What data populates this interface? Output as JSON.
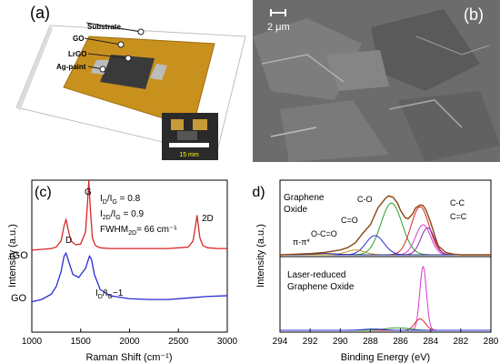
{
  "panel_a": {
    "label": "(a)",
    "callouts": [
      "Substrate",
      "GO",
      "LrGO",
      "Ag-paint"
    ],
    "inset_scale": "15 mm"
  },
  "panel_b": {
    "label": "(b)",
    "scale_text": "2 μm"
  },
  "colors": {
    "red": "#d62728",
    "blue": "#2b2bd6",
    "green": "#2ca02c",
    "purple": "#8e24aa",
    "magenta": "#d63ad6",
    "gold": "#c8961e",
    "brown": "#8b4513",
    "navy": "#1f2a8a"
  },
  "chart_data": [
    {
      "type": "line",
      "panel_label": "(c)",
      "xlabel": "Raman Shift (cm⁻¹)",
      "ylabel": "Intensity (a.u.)",
      "xlim": [
        1000,
        3000
      ],
      "xticks": [
        1000,
        1500,
        2000,
        2500,
        3000
      ],
      "series": [
        {
          "name": "rGO",
          "color": "#d62728",
          "x": [
            1000,
            1100,
            1200,
            1250,
            1300,
            1330,
            1350,
            1370,
            1400,
            1450,
            1500,
            1550,
            1570,
            1583,
            1600,
            1620,
            1650,
            1700,
            1800,
            2000,
            2200,
            2400,
            2500,
            2600,
            2650,
            2680,
            2690,
            2700,
            2720,
            2750,
            2800,
            2900,
            3000
          ],
          "y": [
            0.54,
            0.545,
            0.55,
            0.56,
            0.6,
            0.7,
            0.74,
            0.68,
            0.6,
            0.575,
            0.58,
            0.66,
            0.85,
            1.0,
            0.8,
            0.62,
            0.57,
            0.555,
            0.55,
            0.55,
            0.55,
            0.55,
            0.555,
            0.56,
            0.6,
            0.72,
            0.77,
            0.72,
            0.62,
            0.57,
            0.555,
            0.55,
            0.55
          ]
        },
        {
          "name": "GO",
          "color": "#2b2bd6",
          "x": [
            1000,
            1100,
            1200,
            1250,
            1300,
            1330,
            1350,
            1380,
            1420,
            1480,
            1550,
            1590,
            1610,
            1640,
            1700,
            1800,
            2000,
            2200,
            2400,
            2600,
            2800,
            3000
          ],
          "y": [
            0.2,
            0.215,
            0.25,
            0.3,
            0.4,
            0.5,
            0.52,
            0.46,
            0.38,
            0.36,
            0.42,
            0.5,
            0.48,
            0.38,
            0.28,
            0.24,
            0.22,
            0.215,
            0.215,
            0.225,
            0.235,
            0.24
          ]
        }
      ],
      "annotations": [
        "D",
        "G",
        "2D",
        "rGO",
        "GO"
      ],
      "ratio_lines": [
        {
          "pre": "I",
          "s1": "D",
          "mid": "/I",
          "s2": "G",
          "post": " = 0.8"
        },
        {
          "pre": "I",
          "s1": "2D",
          "mid": "/I",
          "s2": "G",
          "post": " = 0.9"
        },
        {
          "pre": "FWHM",
          "s1": "2D",
          "mid": "",
          "s2": "",
          "post": "= 66 cm⁻¹"
        }
      ],
      "go_ratio": {
        "pre": "I",
        "s1": "D",
        "mid": "/I",
        "s2": "G",
        "post": "~1"
      }
    },
    {
      "type": "line",
      "panel_label": "(d)",
      "xlabel": "Binding Energy (eV)",
      "ylabel": "Intensity (a.u.)",
      "xlim": [
        294,
        280
      ],
      "xticks": [
        294,
        292,
        290,
        288,
        286,
        284,
        282,
        280
      ],
      "top_title_lines": [
        "Graphene",
        "Oxide"
      ],
      "bottom_title_lines": [
        "Laser-reduced",
        "Graphene Oxide"
      ],
      "peak_labels": [
        "C-O",
        "C=O",
        "O-C=O",
        "π-π*",
        "C-C",
        "C=C"
      ],
      "top_envelope": {
        "color": "#8b4513",
        "x": [
          294,
          293,
          292,
          291,
          290,
          289.5,
          289,
          288.5,
          288,
          287.5,
          287,
          286.8,
          286.5,
          286.2,
          286,
          285.7,
          285.5,
          285.2,
          285,
          284.7,
          284.5,
          284.3,
          284,
          283.7,
          283.5,
          283,
          282.5,
          282,
          281,
          280
        ],
        "y": [
          0.0,
          0.01,
          0.02,
          0.04,
          0.08,
          0.12,
          0.2,
          0.36,
          0.5,
          0.78,
          0.94,
          0.98,
          0.96,
          0.86,
          0.74,
          0.62,
          0.6,
          0.68,
          0.78,
          0.83,
          0.82,
          0.74,
          0.54,
          0.3,
          0.15,
          0.04,
          0.01,
          0.0,
          0.0,
          0.0
        ]
      },
      "top_components": [
        {
          "label": "C-O",
          "color": "#2ca02c",
          "center": 286.6,
          "height": 0.86,
          "width": 0.7
        },
        {
          "label": "C-C",
          "color": "#d62728",
          "center": 284.7,
          "height": 0.8,
          "width": 0.6
        },
        {
          "label": "C=C",
          "color": "#8e24aa",
          "center": 284.2,
          "height": 0.45,
          "width": 0.45
        },
        {
          "label": "C=C",
          "color": "#d63ad6",
          "center": 284.5,
          "height": 0.5,
          "width": 0.5
        },
        {
          "label": "C=O",
          "color": "#2b2bd6",
          "center": 287.7,
          "height": 0.32,
          "width": 0.6
        },
        {
          "label": "O-C=O",
          "color": "#c8961e",
          "center": 289.0,
          "height": 0.08,
          "width": 0.6
        },
        {
          "label": "π-π*",
          "color": "#1f2a8a",
          "center": 291.0,
          "height": 0.02,
          "width": 0.8
        }
      ],
      "bottom_components": [
        {
          "label": "C=C",
          "color": "#d63ad6",
          "center": 284.5,
          "height": 1.0,
          "width": 0.22
        },
        {
          "label": "C-C",
          "color": "#d62728",
          "center": 284.7,
          "height": 0.18,
          "width": 0.35
        },
        {
          "label": "C-O",
          "color": "#2ca02c",
          "center": 286.2,
          "height": 0.04,
          "width": 0.8
        },
        {
          "label": "C=O",
          "color": "#2b2bd6",
          "center": 287.8,
          "height": 0.02,
          "width": 0.7
        }
      ]
    }
  ]
}
